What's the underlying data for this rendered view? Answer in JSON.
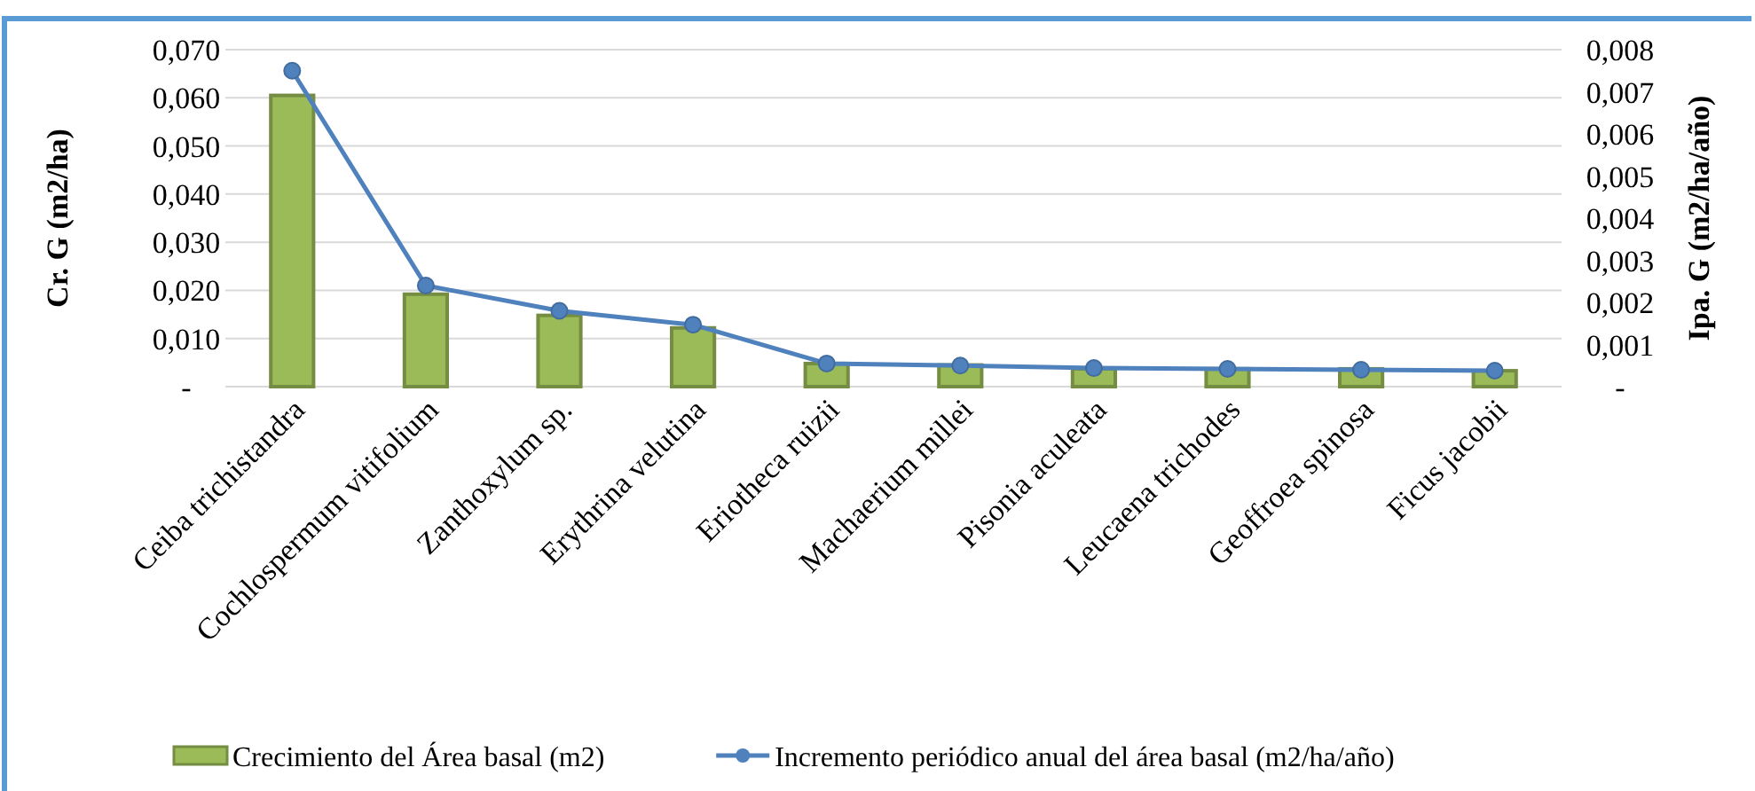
{
  "chart_data": {
    "type": "bar",
    "ylabel": "Cr. G (m2/ha)",
    "y2label": "Ipa. G (m2/ha/año)",
    "categories": [
      "Ceiba trichistandra",
      "Cochlospermum vitifolium",
      "Zanthoxylum sp.",
      "Erythrina velutina",
      "Eriotheca ruizii",
      "Machaerium millei",
      "Pisonia aculeata",
      "Leucaena trichodes",
      "Geoffroea spinosa",
      "Ficus jacobii"
    ],
    "series": [
      {
        "name": "Crecimiento del Área basal (m2)",
        "color": "#9bbb59",
        "values": [
          0.0605,
          0.0192,
          0.0148,
          0.0122,
          0.0048,
          0.0045,
          0.0037,
          0.0037,
          0.0037,
          0.0033
        ]
      },
      {
        "name": "Incremento periódico anual del área basal (m2/ha/año)",
        "type": "line",
        "axis": "y2",
        "color": "#4f81bd",
        "marker": "circle",
        "values": [
          0.0075,
          0.0024,
          0.0018,
          0.00147,
          0.00055,
          0.0005,
          0.00044,
          0.00042,
          0.0004,
          0.00038
        ]
      }
    ],
    "ylim": [
      0,
      0.07
    ],
    "yticks": [
      {
        "value": 0,
        "label": "-"
      },
      {
        "value": 0.01,
        "label": "0,010"
      },
      {
        "value": 0.02,
        "label": "0,020"
      },
      {
        "value": 0.03,
        "label": "0,030"
      },
      {
        "value": 0.04,
        "label": "0,040"
      },
      {
        "value": 0.05,
        "label": "0,050"
      },
      {
        "value": 0.06,
        "label": "0,060"
      },
      {
        "value": 0.07,
        "label": "0,070"
      }
    ],
    "y2lim": [
      0,
      0.008
    ],
    "y2ticks": [
      {
        "value": 0,
        "label": "-"
      },
      {
        "value": 0.001,
        "label": "0,001"
      },
      {
        "value": 0.002,
        "label": "0,002"
      },
      {
        "value": 0.003,
        "label": "0,003"
      },
      {
        "value": 0.004,
        "label": "0,004"
      },
      {
        "value": 0.005,
        "label": "0,005"
      },
      {
        "value": 0.006,
        "label": "0,006"
      },
      {
        "value": 0.007,
        "label": "0,007"
      },
      {
        "value": 0.008,
        "label": "0,008"
      }
    ],
    "grid": "y",
    "legend": "bottom"
  }
}
